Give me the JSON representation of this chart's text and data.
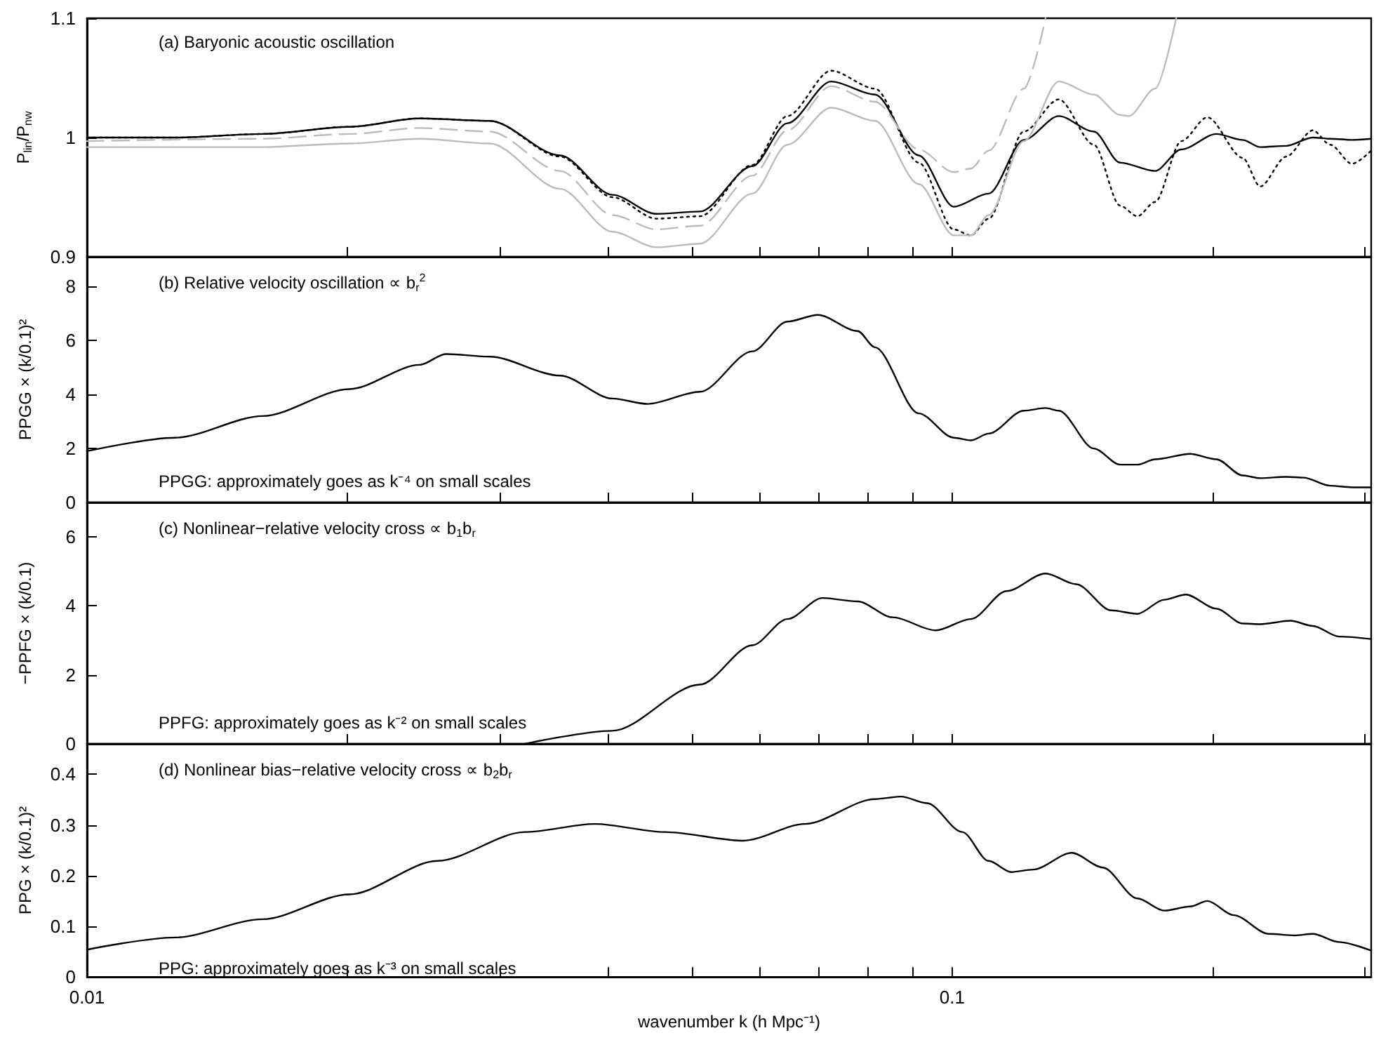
{
  "chart_data": [
    {
      "type": "line",
      "title": "(a) Baryonic acoustic oscillation",
      "ylabel": "P$_{lin}$/P$_{nw}$",
      "log": "x",
      "marker": "none",
      "tick_labels": "y",
      "xlim": [
        0.01,
        0.305
      ],
      "xticks": [
        {
          "value": 0.02,
          "label": null
        },
        {
          "value": 0.03,
          "label": null
        },
        {
          "value": 0.04,
          "label": null
        },
        {
          "value": 0.05,
          "label": null
        },
        {
          "value": 0.06,
          "label": null
        },
        {
          "value": 0.07,
          "label": null
        },
        {
          "value": 0.08,
          "label": null
        },
        {
          "value": 0.09,
          "label": null
        },
        {
          "value": 0.1,
          "label": null
        },
        {
          "value": 0.2,
          "label": null
        },
        {
          "value": 0.3,
          "label": null
        }
      ],
      "ylim": [
        0.9,
        1.1
      ],
      "yticks": [
        0.9,
        1,
        1.1
      ],
      "series": [
        {
          "color": "#000000",
          "line_style": "solid",
          "x": [
            0.01,
            0.01264,
            0.01596,
            0.0201,
            0.02425,
            0.02922,
            0.03522,
            0.04049,
            0.0455,
            0.0511,
            0.05875,
            0.06449,
            0.07244,
            0.08142,
            0.09149,
            0.1004,
            0.1102,
            0.121,
            0.1328,
            0.1458,
            0.1563,
            0.1716,
            0.184,
            0.202,
            0.2166,
            0.227,
            0.2432,
            0.2611,
            0.2735,
            0.2898,
            0.305
          ],
          "values": [
            1.0,
            1.0,
            1.003,
            1.009,
            1.016,
            1.014,
            0.985,
            0.952,
            0.936,
            0.938,
            0.976,
            1.012,
            1.047,
            1.036,
            0.985,
            0.942,
            0.953,
            0.998,
            1.018,
            1.005,
            0.979,
            0.972,
            0.99,
            1.003,
            0.998,
            0.992,
            0.993,
            1.0,
            0.999,
            0.998,
            0.999
          ]
        },
        {
          "color": "#000000",
          "line_style": "dotted",
          "x": [
            0.01,
            0.01264,
            0.01596,
            0.0201,
            0.02425,
            0.02922,
            0.03522,
            0.04049,
            0.0455,
            0.0511,
            0.05875,
            0.06449,
            0.07244,
            0.08142,
            0.09149,
            0.1004,
            0.1051,
            0.1102,
            0.121,
            0.1328,
            0.1458,
            0.1563,
            0.1637,
            0.1716,
            0.184,
            0.1972,
            0.2166,
            0.227,
            0.2432,
            0.2611,
            0.2735,
            0.2898,
            0.305
          ],
          "values": [
            1.0,
            1.0,
            1.003,
            1.009,
            1.016,
            1.014,
            0.984,
            0.95,
            0.932,
            0.934,
            0.977,
            1.018,
            1.056,
            1.041,
            0.979,
            0.923,
            0.918,
            0.932,
            1.005,
            1.032,
            0.994,
            0.943,
            0.934,
            0.946,
            0.997,
            1.017,
            0.983,
            0.959,
            0.984,
            1.006,
            0.994,
            0.978,
            0.989
          ]
        },
        {
          "color": "#bbbbbb",
          "line_style": "dashed",
          "x": [
            0.01,
            0.01596,
            0.0201,
            0.02425,
            0.02922,
            0.03522,
            0.04049,
            0.0455,
            0.0511,
            0.05875,
            0.06449,
            0.07244,
            0.08142,
            0.09149,
            0.1004,
            0.1051,
            0.1102,
            0.121,
            0.1282
          ],
          "values": [
            0.997,
            0.999,
            1.003,
            1.008,
            1.005,
            0.972,
            0.935,
            0.923,
            0.926,
            0.968,
            1.006,
            1.043,
            1.03,
            0.99,
            0.971,
            0.974,
            0.989,
            1.041,
            1.1
          ]
        },
        {
          "color": "#bbbbbb",
          "line_style": "solid",
          "x": [
            0.01,
            0.01596,
            0.0201,
            0.02425,
            0.02922,
            0.03522,
            0.04049,
            0.0455,
            0.0511,
            0.05875,
            0.06449,
            0.07244,
            0.08142,
            0.09149,
            0.1004,
            0.1051,
            0.1102,
            0.121,
            0.1328,
            0.1458,
            0.1563,
            0.16,
            0.1716,
            0.1815
          ],
          "values": [
            0.992,
            0.992,
            0.995,
            0.999,
            0.995,
            0.957,
            0.921,
            0.908,
            0.911,
            0.953,
            0.994,
            1.025,
            1.014,
            0.961,
            0.918,
            0.918,
            0.935,
            0.997,
            1.047,
            1.036,
            1.019,
            1.018,
            1.041,
            1.1
          ]
        }
      ]
    },
    {
      "type": "line",
      "title": "(b) Relative velocity oscillation ∝ b$_{r}$$^{2}$",
      "ylabel": "PPGG × (k/0.1)²",
      "annotations": [
        "PPGG: approximately goes as k⁻⁴ on small scales"
      ],
      "log": "x",
      "marker": "none",
      "tick_labels": "y",
      "xlim": [
        0.01,
        0.305
      ],
      "xticks": [
        {
          "value": 0.02,
          "label": null
        },
        {
          "value": 0.03,
          "label": null
        },
        {
          "value": 0.04,
          "label": null
        },
        {
          "value": 0.05,
          "label": null
        },
        {
          "value": 0.06,
          "label": null
        },
        {
          "value": 0.07,
          "label": null
        },
        {
          "value": 0.08,
          "label": null
        },
        {
          "value": 0.09,
          "label": null
        },
        {
          "value": 0.1,
          "label": null
        },
        {
          "value": 0.2,
          "label": null
        },
        {
          "value": 0.3,
          "label": null
        }
      ],
      "ylim": [
        0,
        9.1
      ],
      "yticks": [
        0,
        2,
        4,
        6,
        8
      ],
      "series": [
        {
          "color": "#000000",
          "line_style": "solid",
          "x": [
            0.01,
            0.01264,
            0.01596,
            0.0201,
            0.02425,
            0.02599,
            0.02922,
            0.03522,
            0.04049,
            0.04445,
            0.0511,
            0.05875,
            0.06449,
            0.06994,
            0.07775,
            0.08142,
            0.09149,
            0.1004,
            0.1051,
            0.1102,
            0.121,
            0.1282,
            0.1328,
            0.1458,
            0.1563,
            0.1637,
            0.1716,
            0.1884,
            0.202,
            0.2166,
            0.227,
            0.2432,
            0.2547,
            0.2735,
            0.2898,
            0.305
          ],
          "values": [
            1.9,
            2.4,
            3.2,
            4.2,
            5.1,
            5.5,
            5.4,
            4.7,
            3.85,
            3.65,
            4.1,
            5.6,
            6.7,
            6.95,
            6.35,
            5.75,
            3.3,
            2.4,
            2.3,
            2.55,
            3.4,
            3.5,
            3.4,
            2.0,
            1.4,
            1.4,
            1.6,
            1.8,
            1.6,
            1.0,
            0.9,
            0.95,
            0.92,
            0.62,
            0.56,
            0.56
          ]
        }
      ]
    },
    {
      "type": "line",
      "title": "(c) Nonlinear−relative velocity cross ∝ b$_{1}$b$_{r}$",
      "ylabel": "−PPFG × (k/0.1)",
      "annotations": [
        "PPFG: approximately goes as k⁻² on small scales"
      ],
      "log": "x",
      "marker": "none",
      "tick_labels": "y",
      "xlim": [
        0.01,
        0.305
      ],
      "xticks": [
        {
          "value": 0.02,
          "label": null
        },
        {
          "value": 0.03,
          "label": null
        },
        {
          "value": 0.04,
          "label": null
        },
        {
          "value": 0.05,
          "label": null
        },
        {
          "value": 0.06,
          "label": null
        },
        {
          "value": 0.07,
          "label": null
        },
        {
          "value": 0.08,
          "label": null
        },
        {
          "value": 0.09,
          "label": null
        },
        {
          "value": 0.1,
          "label": null
        },
        {
          "value": 0.2,
          "label": null
        },
        {
          "value": 0.3,
          "label": null
        }
      ],
      "ylim": [
        0,
        7
      ],
      "yticks": [
        0,
        2,
        4,
        6
      ],
      "series": [
        {
          "color": "#000000",
          "line_style": "solid",
          "x": [
            0.03207,
            0.04049,
            0.0511,
            0.05875,
            0.06449,
            0.0708,
            0.07775,
            0.08531,
            0.09575,
            0.1051,
            0.1156,
            0.1282,
            0.1391,
            0.1527,
            0.1637,
            0.1758,
            0.1862,
            0.202,
            0.2166,
            0.227,
            0.2461,
            0.2611,
            0.28,
            0.305
          ],
          "values": [
            0,
            0.38,
            1.72,
            2.86,
            3.62,
            4.23,
            4.13,
            3.67,
            3.29,
            3.62,
            4.43,
            4.94,
            4.63,
            3.87,
            3.77,
            4.18,
            4.33,
            3.92,
            3.49,
            3.47,
            3.57,
            3.42,
            3.11,
            3.04
          ]
        }
      ]
    },
    {
      "type": "line",
      "title": "(d) Nonlinear bias−relative velocity cross ∝ b$_{2}$b$_{r}$",
      "ylabel": "PPG × (k/0.1)²",
      "xlabel": "wavenumber k (h Mpc⁻¹)",
      "annotations": [
        "PPG: approximately goes as k⁻³ on small scales"
      ],
      "log": "x",
      "marker": "none",
      "xlim": [
        0.01,
        0.305
      ],
      "xticks": [
        0.01,
        {
          "value": 0.02,
          "label": null
        },
        {
          "value": 0.03,
          "label": null
        },
        {
          "value": 0.04,
          "label": null
        },
        {
          "value": 0.05,
          "label": null
        },
        {
          "value": 0.06,
          "label": null
        },
        {
          "value": 0.07,
          "label": null
        },
        {
          "value": 0.08,
          "label": null
        },
        {
          "value": 0.09,
          "label": null
        },
        0.1,
        {
          "value": 0.2,
          "label": null
        },
        {
          "value": 0.3,
          "label": null
        }
      ],
      "ylim": [
        0,
        0.46
      ],
      "yticks": [
        0,
        0.1,
        0.2,
        0.3,
        0.4
      ],
      "series": [
        {
          "color": "#000000",
          "line_style": "solid",
          "x": [
            0.01,
            0.01264,
            0.01596,
            0.0201,
            0.02541,
            0.03207,
            0.03863,
            0.04654,
            0.05738,
            0.06757,
            0.08142,
            0.0873,
            0.09355,
            0.1027,
            0.1102,
            0.117,
            0.124,
            0.1375,
            0.1493,
            0.1637,
            0.1758,
            0.1884,
            0.1972,
            0.2115,
            0.2323,
            0.2489,
            0.2611,
            0.28,
            0.305
          ],
          "values": [
            0.054,
            0.078,
            0.114,
            0.163,
            0.229,
            0.286,
            0.302,
            0.286,
            0.269,
            0.302,
            0.351,
            0.356,
            0.343,
            0.286,
            0.229,
            0.207,
            0.212,
            0.245,
            0.216,
            0.155,
            0.131,
            0.139,
            0.15,
            0.122,
            0.085,
            0.082,
            0.085,
            0.069,
            0.052
          ]
        }
      ]
    }
  ]
}
